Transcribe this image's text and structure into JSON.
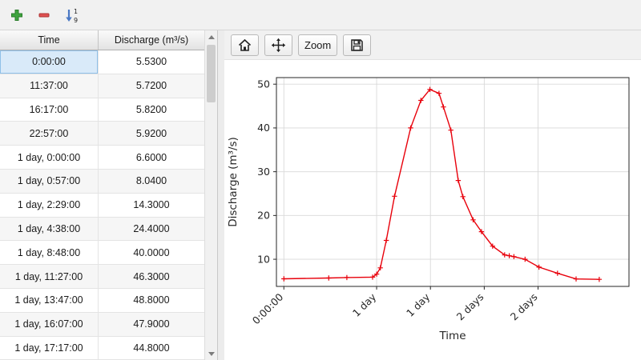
{
  "main_toolbar": {
    "sort_digit_top": "1",
    "sort_digit_bottom": "9"
  },
  "table": {
    "columns": [
      "Time",
      "Discharge (m³/s)"
    ],
    "rows": [
      [
        "0:00:00",
        "5.5300"
      ],
      [
        "11:37:00",
        "5.7200"
      ],
      [
        "16:17:00",
        "5.8200"
      ],
      [
        "22:57:00",
        "5.9200"
      ],
      [
        "1 day, 0:00:00",
        "6.6000"
      ],
      [
        "1 day, 0:57:00",
        "8.0400"
      ],
      [
        "1 day, 2:29:00",
        "14.3000"
      ],
      [
        "1 day, 4:38:00",
        "24.4000"
      ],
      [
        "1 day, 8:48:00",
        "40.0000"
      ],
      [
        "1 day, 11:27:00",
        "46.3000"
      ],
      [
        "1 day, 13:47:00",
        "48.8000"
      ],
      [
        "1 day, 16:07:00",
        "47.9000"
      ],
      [
        "1 day, 17:17:00",
        "44.8000"
      ]
    ],
    "selected": {
      "row": 0,
      "col": 0
    }
  },
  "chart_toolbar": {
    "zoom_label": "Zoom"
  },
  "chart_data": {
    "type": "line",
    "xlabel": "Time",
    "ylabel": "Discharge (m³/s)",
    "line_color": "#e8000b",
    "marker": "+",
    "grid": true,
    "legend": "none",
    "xlim_days": [
      -0.08,
      3.72
    ],
    "ylim": [
      3.8,
      51.5
    ],
    "yticks": [
      10,
      20,
      30,
      40,
      50
    ],
    "xticks": [
      {
        "pos": 0.0,
        "label": "0:00:00"
      },
      {
        "pos": 1.0,
        "label": "1 day"
      },
      {
        "pos": 1.58,
        "label": "1 day"
      },
      {
        "pos": 2.16,
        "label": "2 days"
      },
      {
        "pos": 2.74,
        "label": "2 days"
      }
    ],
    "series": [
      {
        "name": "Discharge",
        "x_days": [
          0,
          0.484,
          0.679,
          0.956,
          1.0,
          1.04,
          1.104,
          1.193,
          1.367,
          1.477,
          1.574,
          1.672,
          1.72,
          1.8,
          1.88,
          1.93,
          2.04,
          2.13,
          2.25,
          2.38,
          2.43,
          2.48,
          2.6,
          2.75,
          2.95,
          3.15,
          3.4
        ],
        "y": [
          5.53,
          5.72,
          5.82,
          5.92,
          6.6,
          8.04,
          14.3,
          24.4,
          40.0,
          46.3,
          48.8,
          47.9,
          44.8,
          39.5,
          28.0,
          24.3,
          19.0,
          16.3,
          13.0,
          11.0,
          10.8,
          10.6,
          10.0,
          8.2,
          6.8,
          5.5,
          5.4
        ]
      }
    ]
  }
}
